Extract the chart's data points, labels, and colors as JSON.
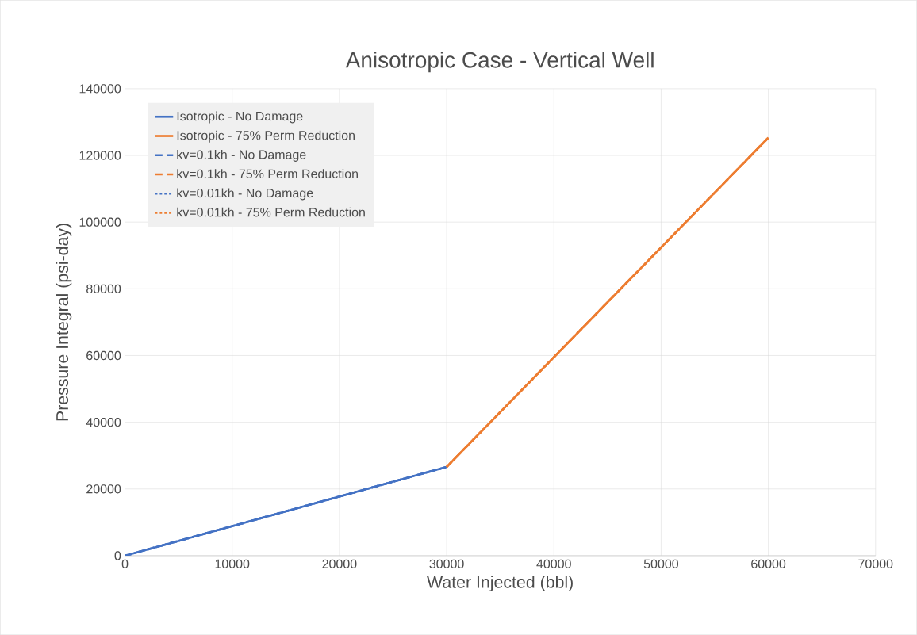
{
  "chart_data": {
    "type": "line",
    "title": "Anisotropic Case - Vertical Well",
    "xlabel": "Water Injected (bbl)",
    "ylabel": "Pressure Integral (psi-day)",
    "xlim": [
      0,
      70000
    ],
    "ylim": [
      0,
      140000
    ],
    "xticks": [
      0,
      10000,
      20000,
      30000,
      40000,
      50000,
      60000,
      70000
    ],
    "yticks": [
      0,
      20000,
      40000,
      60000,
      80000,
      100000,
      120000,
      140000
    ],
    "grid": true,
    "legend": "top left",
    "marker": "none",
    "series": [
      {
        "name": "Isotropic - No Damage",
        "color": "#4472c4",
        "line_style": "solid",
        "x": [
          0,
          30000
        ],
        "values": [
          0,
          26600
        ]
      },
      {
        "name": "Isotropic - 75% Perm Reduction",
        "color": "#ed7d31",
        "line_style": "solid",
        "x": [
          30000,
          60000
        ],
        "values": [
          26600,
          125300
        ]
      },
      {
        "name": "kv=0.1kh - No Damage",
        "color": "#4472c4",
        "line_style": "dashed",
        "x": [
          0,
          30000
        ],
        "values": [
          0,
          26600
        ]
      },
      {
        "name": "kv=0.1kh - 75% Perm Reduction",
        "color": "#ed7d31",
        "line_style": "dashed",
        "x": [
          30000,
          60000
        ],
        "values": [
          26600,
          125300
        ]
      },
      {
        "name": "kv=0.01kh - No Damage",
        "color": "#4472c4",
        "line_style": "dotted",
        "x": [
          0,
          30000
        ],
        "values": [
          0,
          26600
        ]
      },
      {
        "name": "kv=0.01kh - 75% Perm Reduction",
        "color": "#ed7d31",
        "line_style": "dotted",
        "x": [
          30000,
          60000
        ],
        "values": [
          26600,
          125300
        ]
      }
    ]
  }
}
